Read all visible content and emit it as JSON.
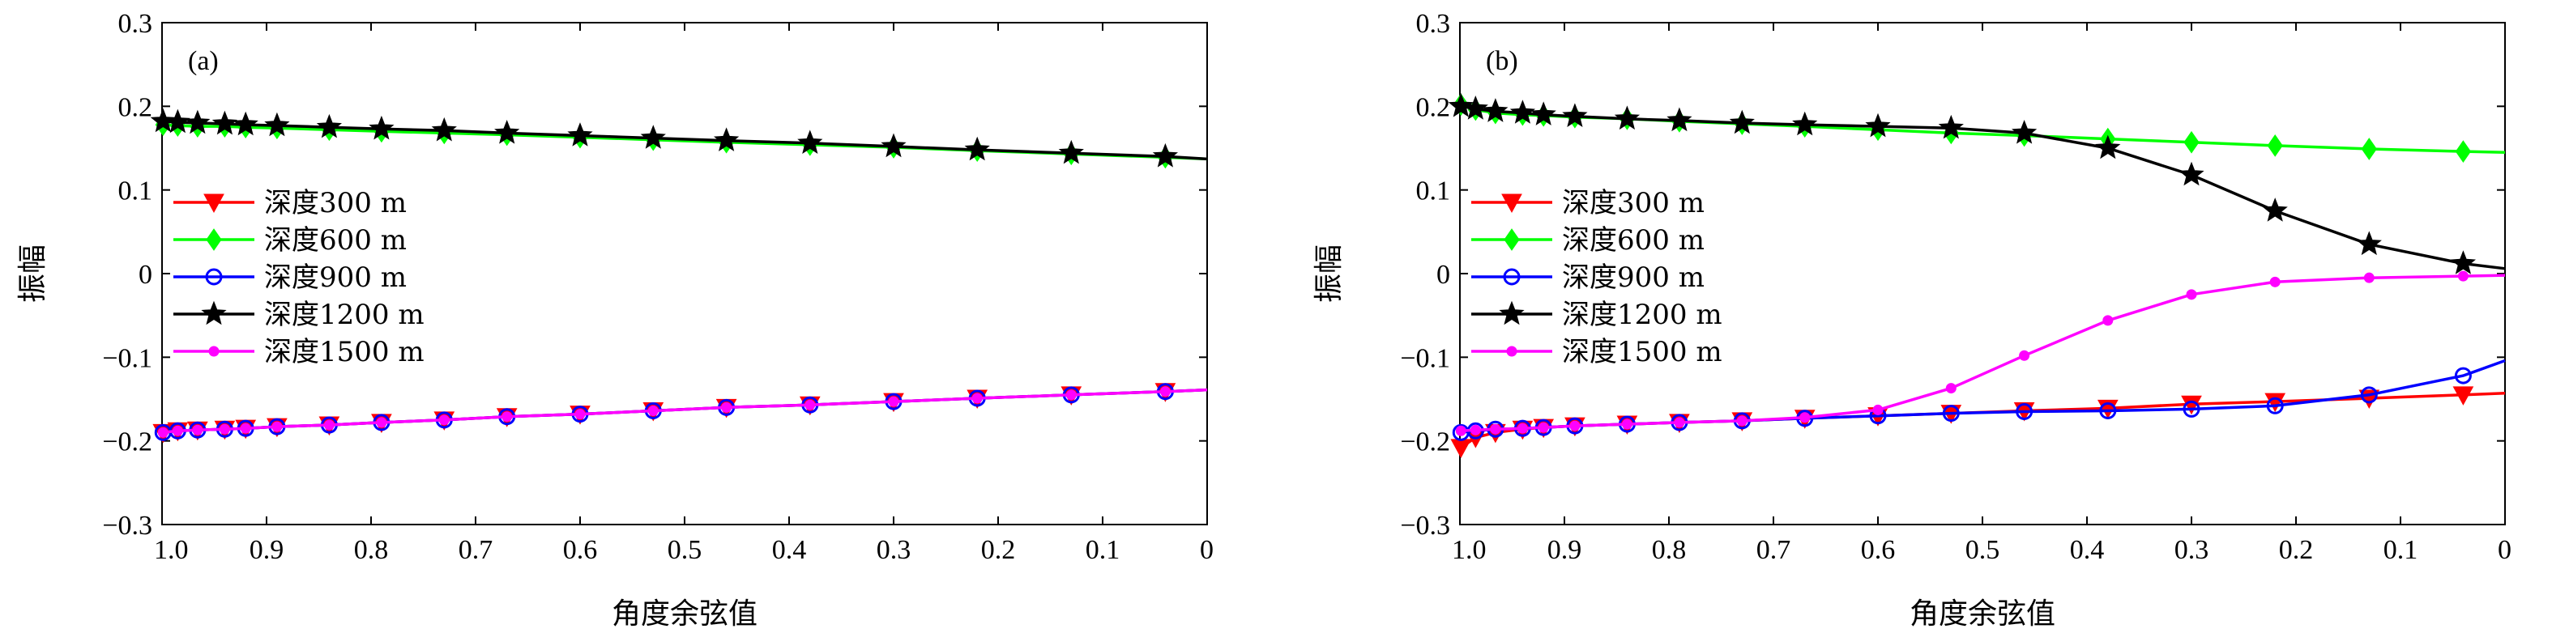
{
  "figure": {
    "panel_labels": [
      "(a)",
      "(b)"
    ]
  },
  "chart_data": [
    {
      "type": "line",
      "panel": "(a)",
      "xlabel": "角度余弦值",
      "ylabel": "振幅",
      "xlim": [
        1.0,
        0
      ],
      "ylim": [
        -0.3,
        0.3
      ],
      "xticks": [
        1.0,
        0.9,
        0.8,
        0.7,
        0.6,
        0.5,
        0.4,
        0.3,
        0.2,
        0.1,
        0
      ],
      "xtick_labels": [
        "1.0",
        "0.9",
        "0.8",
        "0.7",
        "0.6",
        "0.5",
        "0.4",
        "0.3",
        "0.2",
        "0.1",
        "0"
      ],
      "yticks": [
        0.3,
        0.2,
        0.1,
        0,
        -0.1,
        -0.2,
        -0.3
      ],
      "ytick_labels": [
        "0.3",
        "0.2",
        "0.1",
        "0",
        "−0.1",
        "−0.2",
        "−0.3"
      ],
      "grid": false,
      "legend_position": "middle-left",
      "series": [
        {
          "name": "深度300 m",
          "color": "#ff0000",
          "marker": "triangle-down",
          "x": [
            0.999,
            0.985,
            0.966,
            0.94,
            0.92,
            0.89,
            0.84,
            0.79,
            0.73,
            0.67,
            0.6,
            0.53,
            0.46,
            0.38,
            0.3,
            0.22,
            0.13,
            0.04,
            0
          ],
          "y": [
            -0.19,
            -0.188,
            -0.187,
            -0.186,
            -0.185,
            -0.183,
            -0.181,
            -0.178,
            -0.175,
            -0.171,
            -0.168,
            -0.164,
            -0.16,
            -0.157,
            -0.153,
            -0.149,
            -0.145,
            -0.141,
            -0.139
          ]
        },
        {
          "name": "深度600 m",
          "color": "#00ff00",
          "marker": "diamond",
          "x": [
            0.999,
            0.985,
            0.966,
            0.94,
            0.92,
            0.89,
            0.84,
            0.79,
            0.73,
            0.67,
            0.6,
            0.53,
            0.46,
            0.38,
            0.3,
            0.22,
            0.13,
            0.04,
            0
          ],
          "y": [
            0.178,
            0.177,
            0.176,
            0.176,
            0.175,
            0.174,
            0.172,
            0.17,
            0.168,
            0.166,
            0.163,
            0.16,
            0.157,
            0.154,
            0.151,
            0.147,
            0.143,
            0.139,
            0.137
          ]
        },
        {
          "name": "深度900 m",
          "color": "#0000ff",
          "marker": "circle",
          "x": [
            0.999,
            0.985,
            0.966,
            0.94,
            0.92,
            0.89,
            0.84,
            0.79,
            0.73,
            0.67,
            0.6,
            0.53,
            0.46,
            0.38,
            0.3,
            0.22,
            0.13,
            0.04,
            0
          ],
          "y": [
            -0.19,
            -0.188,
            -0.187,
            -0.186,
            -0.185,
            -0.183,
            -0.181,
            -0.178,
            -0.175,
            -0.171,
            -0.168,
            -0.164,
            -0.16,
            -0.157,
            -0.153,
            -0.149,
            -0.145,
            -0.141,
            -0.139
          ]
        },
        {
          "name": "深度1200 m",
          "color": "#000000",
          "marker": "star",
          "x": [
            0.999,
            0.985,
            0.966,
            0.94,
            0.92,
            0.89,
            0.84,
            0.79,
            0.73,
            0.67,
            0.6,
            0.53,
            0.46,
            0.38,
            0.3,
            0.22,
            0.13,
            0.04,
            0
          ],
          "y": [
            0.182,
            0.181,
            0.18,
            0.179,
            0.178,
            0.177,
            0.175,
            0.173,
            0.171,
            0.168,
            0.165,
            0.162,
            0.159,
            0.156,
            0.152,
            0.148,
            0.144,
            0.14,
            0.137
          ]
        },
        {
          "name": "深度1500 m",
          "color": "#ff00ff",
          "marker": "dot",
          "x": [
            0.999,
            0.985,
            0.966,
            0.94,
            0.92,
            0.89,
            0.84,
            0.79,
            0.73,
            0.67,
            0.6,
            0.53,
            0.46,
            0.38,
            0.3,
            0.22,
            0.13,
            0.04,
            0
          ],
          "y": [
            -0.19,
            -0.188,
            -0.187,
            -0.186,
            -0.185,
            -0.183,
            -0.181,
            -0.178,
            -0.175,
            -0.171,
            -0.168,
            -0.164,
            -0.16,
            -0.157,
            -0.153,
            -0.149,
            -0.145,
            -0.141,
            -0.139
          ]
        }
      ]
    },
    {
      "type": "line",
      "panel": "(b)",
      "xlabel": "角度余弦值",
      "ylabel": "振幅",
      "xlim": [
        1.0,
        0
      ],
      "ylim": [
        -0.3,
        0.3
      ],
      "xticks": [
        1.0,
        0.9,
        0.8,
        0.7,
        0.6,
        0.5,
        0.4,
        0.3,
        0.2,
        0.1,
        0
      ],
      "xtick_labels": [
        "1.0",
        "0.9",
        "0.8",
        "0.7",
        "0.6",
        "0.5",
        "0.4",
        "0.3",
        "0.2",
        "0.1",
        "0"
      ],
      "yticks": [
        0.3,
        0.2,
        0.1,
        0,
        -0.1,
        -0.2,
        -0.3
      ],
      "ytick_labels": [
        "0.3",
        "0.2",
        "0.1",
        "0",
        "−0.1",
        "−0.2",
        "−0.3"
      ],
      "grid": false,
      "legend_position": "middle-left",
      "series": [
        {
          "name": "深度300 m",
          "color": "#ff0000",
          "marker": "triangle-down",
          "x": [
            0.999,
            0.985,
            0.966,
            0.94,
            0.92,
            0.89,
            0.84,
            0.79,
            0.73,
            0.67,
            0.6,
            0.53,
            0.46,
            0.38,
            0.3,
            0.22,
            0.13,
            0.04,
            0
          ],
          "y": [
            -0.208,
            -0.196,
            -0.19,
            -0.186,
            -0.184,
            -0.182,
            -0.18,
            -0.178,
            -0.176,
            -0.173,
            -0.17,
            -0.167,
            -0.164,
            -0.161,
            -0.156,
            -0.153,
            -0.149,
            -0.145,
            -0.143
          ]
        },
        {
          "name": "深度600 m",
          "color": "#00ff00",
          "marker": "diamond",
          "x": [
            0.999,
            0.985,
            0.966,
            0.94,
            0.92,
            0.89,
            0.84,
            0.79,
            0.73,
            0.67,
            0.6,
            0.53,
            0.46,
            0.38,
            0.3,
            0.22,
            0.13,
            0.04,
            0
          ],
          "y": [
            0.202,
            0.196,
            0.192,
            0.19,
            0.189,
            0.187,
            0.185,
            0.182,
            0.179,
            0.176,
            0.172,
            0.168,
            0.165,
            0.161,
            0.157,
            0.153,
            0.149,
            0.146,
            0.145
          ]
        },
        {
          "name": "深度900 m",
          "color": "#0000ff",
          "marker": "circle",
          "x": [
            0.999,
            0.985,
            0.966,
            0.94,
            0.92,
            0.89,
            0.84,
            0.79,
            0.73,
            0.67,
            0.6,
            0.53,
            0.46,
            0.38,
            0.3,
            0.22,
            0.13,
            0.04,
            0
          ],
          "y": [
            -0.19,
            -0.188,
            -0.186,
            -0.185,
            -0.184,
            -0.182,
            -0.18,
            -0.178,
            -0.176,
            -0.173,
            -0.17,
            -0.167,
            -0.165,
            -0.164,
            -0.162,
            -0.158,
            -0.145,
            -0.122,
            -0.104
          ]
        },
        {
          "name": "深度1200 m",
          "color": "#000000",
          "marker": "star",
          "x": [
            0.999,
            0.985,
            0.966,
            0.94,
            0.92,
            0.89,
            0.84,
            0.79,
            0.73,
            0.67,
            0.6,
            0.53,
            0.46,
            0.38,
            0.3,
            0.22,
            0.13,
            0.04,
            0
          ],
          "y": [
            0.2,
            0.197,
            0.194,
            0.192,
            0.19,
            0.188,
            0.185,
            0.183,
            0.18,
            0.178,
            0.176,
            0.174,
            0.168,
            0.15,
            0.118,
            0.075,
            0.035,
            0.012,
            0.006
          ]
        },
        {
          "name": "深度1500 m",
          "color": "#ff00ff",
          "marker": "dot",
          "x": [
            0.999,
            0.985,
            0.966,
            0.94,
            0.92,
            0.89,
            0.84,
            0.79,
            0.73,
            0.67,
            0.6,
            0.53,
            0.46,
            0.38,
            0.3,
            0.22,
            0.13,
            0.04,
            0
          ],
          "y": [
            -0.188,
            -0.187,
            -0.186,
            -0.185,
            -0.184,
            -0.182,
            -0.18,
            -0.178,
            -0.176,
            -0.172,
            -0.163,
            -0.137,
            -0.098,
            -0.056,
            -0.025,
            -0.01,
            -0.005,
            -0.003,
            -0.002
          ]
        }
      ]
    }
  ]
}
